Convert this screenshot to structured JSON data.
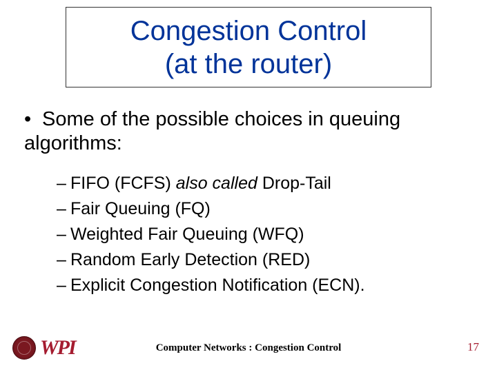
{
  "title": {
    "line1": "Congestion Control",
    "line2": "(at the router)",
    "color": "#003399",
    "fontsize": 40,
    "border_color": "#333333"
  },
  "main_bullet": {
    "text": "Some of the possible choices in queuing algorithms:",
    "fontsize": 29
  },
  "sub_bullets": [
    {
      "prefix": "FIFO (FCFS) ",
      "italic": "also called",
      "suffix": " Drop-Tail"
    },
    {
      "prefix": "Fair Queuing (FQ)",
      "italic": "",
      "suffix": ""
    },
    {
      "prefix": "Weighted Fair Queuing (WFQ)",
      "italic": "",
      "suffix": ""
    },
    {
      "prefix": "Random Early Detection (RED)",
      "italic": "",
      "suffix": ""
    },
    {
      "prefix": "Explicit Congestion Notification (ECN).",
      "italic": "",
      "suffix": ""
    }
  ],
  "footer": {
    "logo_text": "WPI",
    "logo_color": "#a51c30",
    "center_text": "Computer Networks : Congestion Control",
    "page_number": "17",
    "page_number_color": "#a51c30"
  },
  "background_color": "#ffffff"
}
